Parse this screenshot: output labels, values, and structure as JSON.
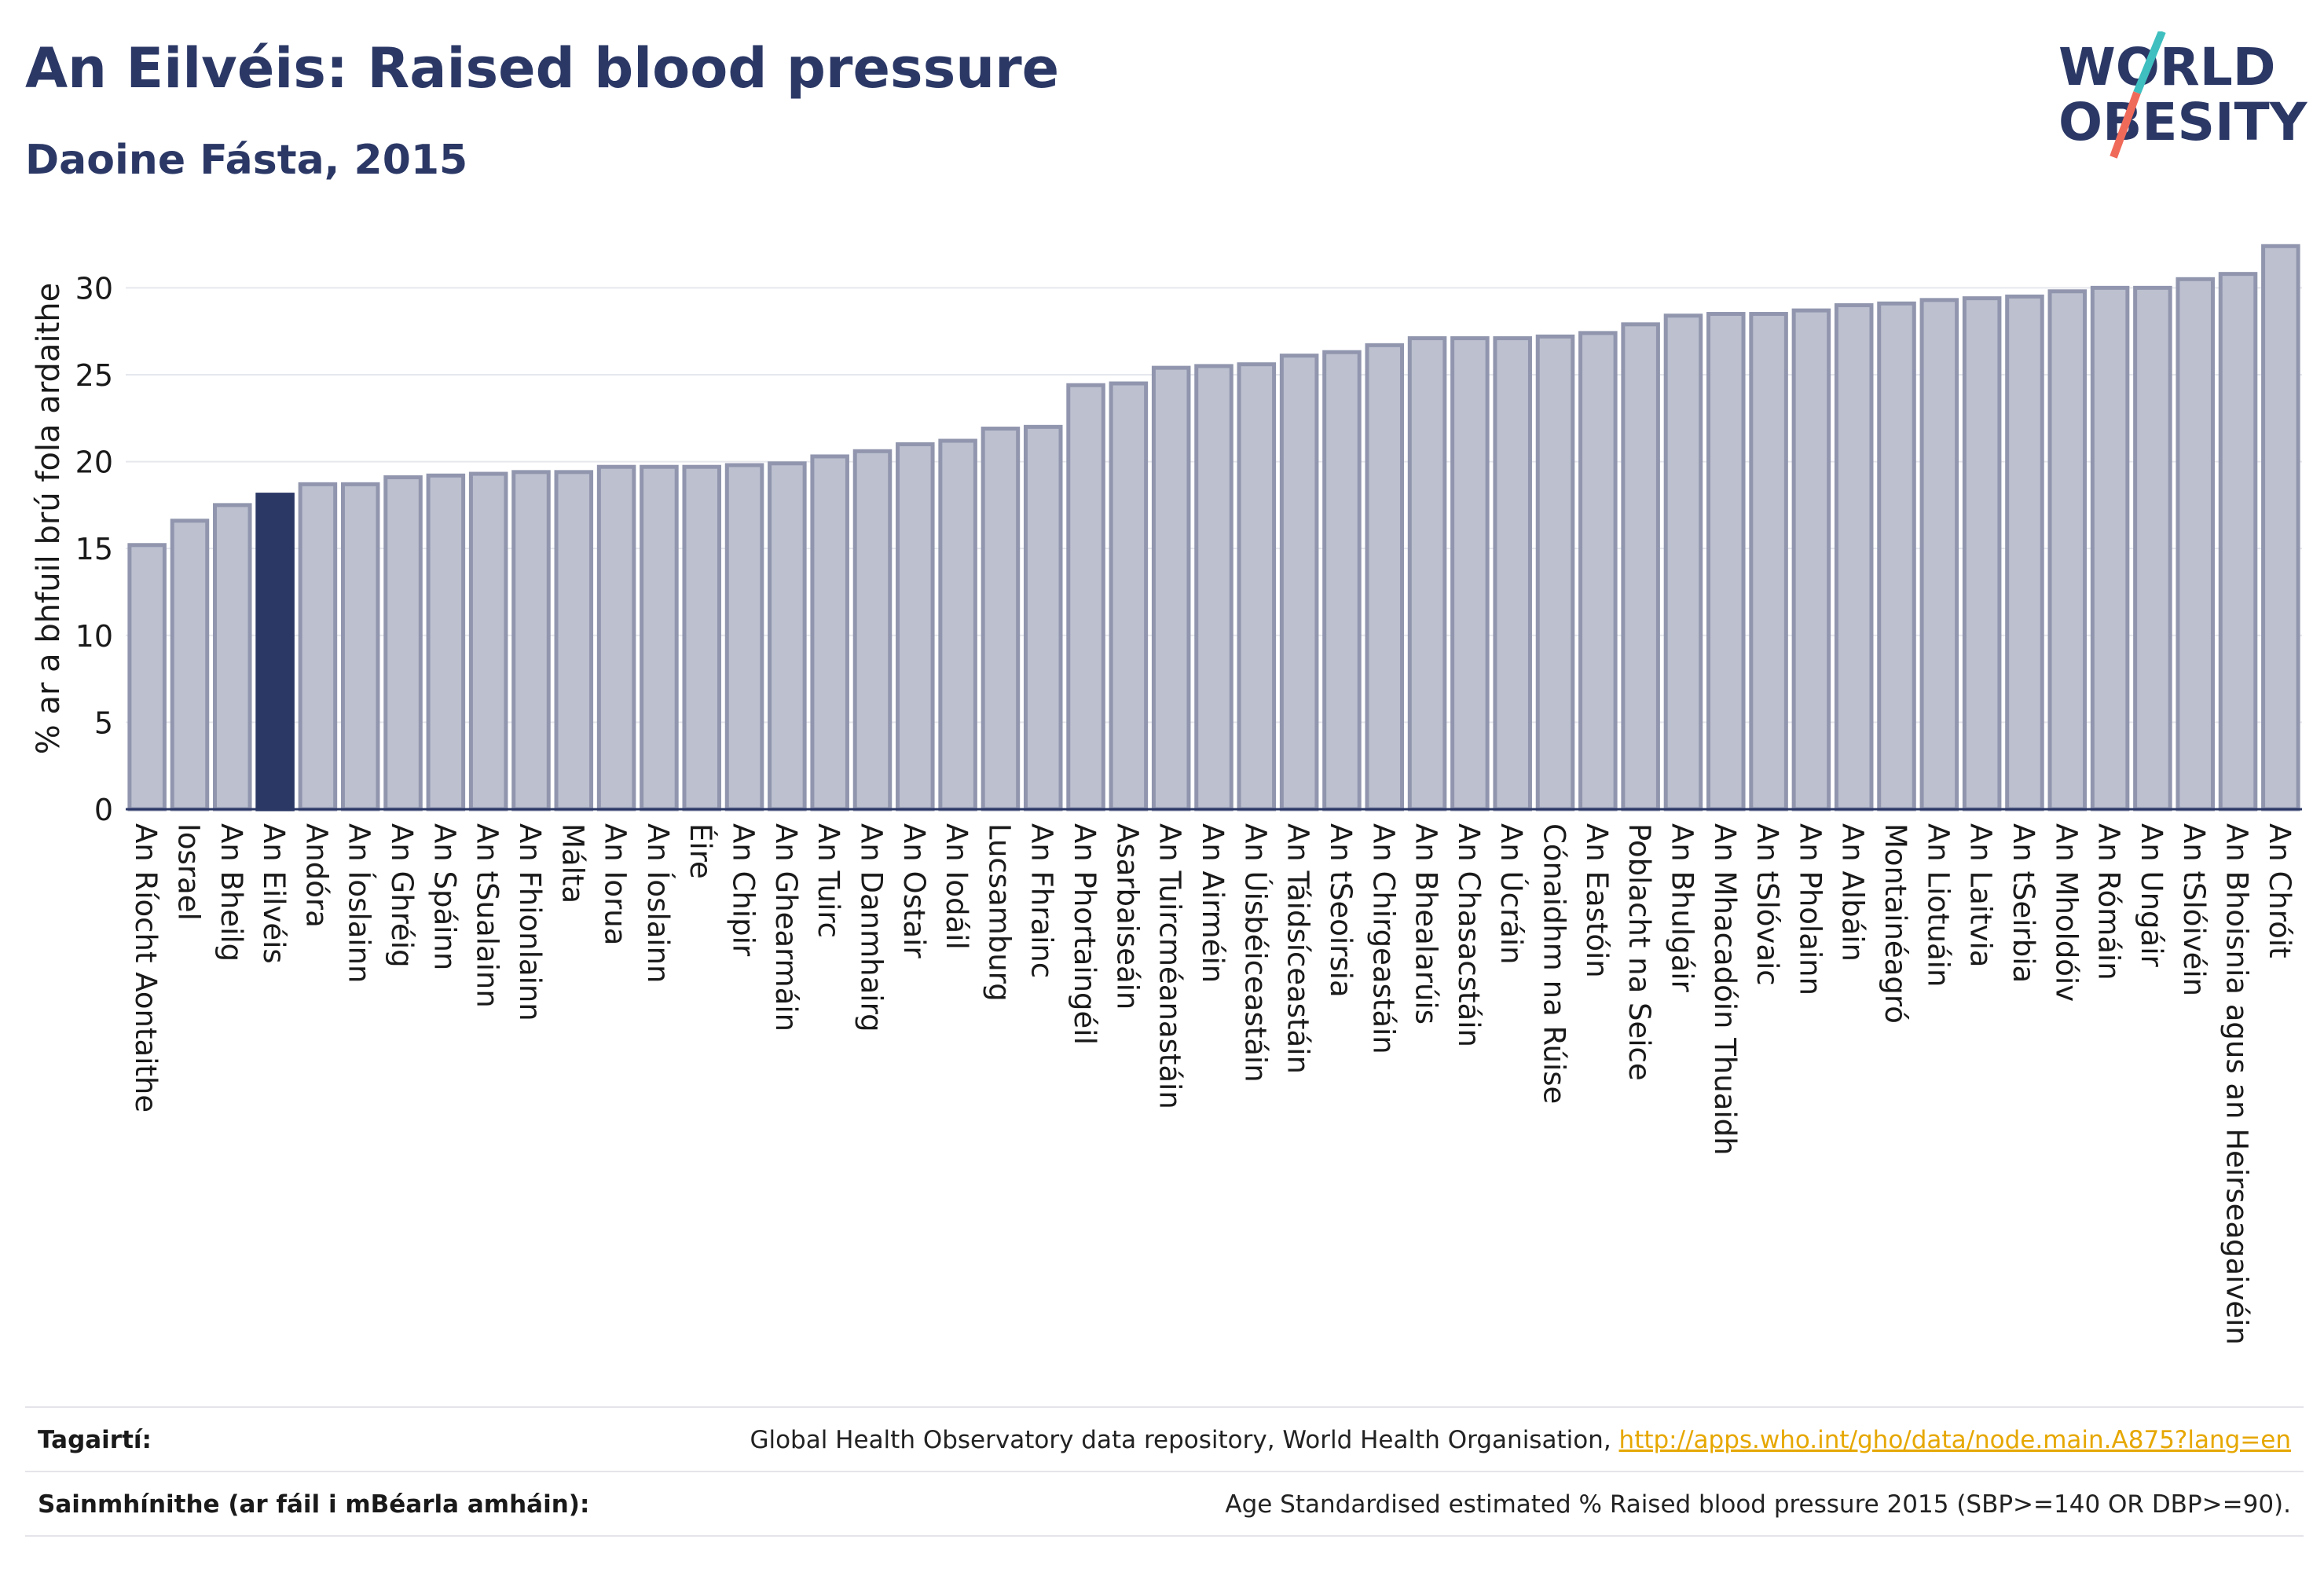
{
  "header": {
    "title": "An Eilvéis: Raised blood pressure",
    "subtitle": "Daoine Fásta, 2015"
  },
  "logo": {
    "line1": "WORLD",
    "line2": "OBESITY",
    "colors": {
      "text": "#2b3866",
      "slash_top": "#3fbfbf",
      "slash_bottom": "#f06a5a"
    }
  },
  "colors": {
    "bar": "#bcc0cf",
    "bar_stroke": "#9196ae",
    "highlight": "#2b3866",
    "axis": "#2b3866",
    "grid": "#e6e8ee"
  },
  "chart_data": {
    "type": "bar",
    "title": "An Eilvéis: Raised blood pressure",
    "subtitle": "Daoine Fásta, 2015",
    "xlabel": "",
    "ylabel": "% ar a bhfuil brú fola ardaithe",
    "ylim": [
      0,
      33
    ],
    "yticks": [
      0,
      5,
      10,
      15,
      20,
      25,
      30
    ],
    "grid": true,
    "highlight": "An Eilvéis",
    "categories": [
      "An Ríocht Aontaithe",
      "Iosrael",
      "An Bheilg",
      "An Eilvéis",
      "Andóra",
      "An Íoslainn",
      "An Ghréig",
      "An Spáinn",
      "An tSualainn",
      "An Fhionlainn",
      "Málta",
      "An Iorua",
      "An Íoslainn",
      "Éire",
      "An Chipir",
      "An Ghearmáin",
      "An Tuirc",
      "An Danmhairg",
      "An Ostair",
      "An Iodáil",
      "Lucsamburg",
      "An Fhrainc",
      "An Phortaingéil",
      "Asarbaiseáin",
      "An Tuircméanastáin",
      "An Airméin",
      "An Úisbéiceastáin",
      "An Táidsíceastáin",
      "An tSeoirsia",
      "An Chirgeastáin",
      "An Bhealarúis",
      "An Chasacstáin",
      "An Úcráin",
      "Cónaidhm na Rúise",
      "An Eastóin",
      "Poblacht na Seice",
      "An Bhulgáir",
      "An Mhacadóin Thuaidh",
      "An tSlóvaic",
      "An Pholainn",
      "An Albáin",
      "Montainéagró",
      "An Liotuáin",
      "An Laitvia",
      "An tSeirbia",
      "An Mholdóiv",
      "An Rómáin",
      "An Ungáir",
      "An tSlóivéin",
      "An Bhoisnia agus an Heirseagaivéin",
      "An Chróit"
    ],
    "values": [
      15.2,
      16.6,
      17.5,
      18.1,
      18.7,
      18.7,
      19.1,
      19.2,
      19.3,
      19.4,
      19.4,
      19.7,
      19.7,
      19.7,
      19.8,
      19.9,
      20.3,
      20.6,
      21.0,
      21.2,
      21.9,
      22.0,
      24.4,
      24.5,
      25.4,
      25.5,
      25.6,
      26.1,
      26.3,
      26.7,
      27.1,
      27.1,
      27.1,
      27.2,
      27.4,
      27.9,
      28.4,
      28.5,
      28.5,
      28.7,
      29.0,
      29.1,
      29.3,
      29.4,
      29.5,
      29.8,
      30.0,
      30.0,
      30.5,
      30.8,
      32.4
    ]
  },
  "footer": {
    "references_label": "Tagairtí:",
    "references_text": "Global Health Observatory data repository, World Health Organisation, ",
    "references_link": "http://apps.who.int/gho/data/node.main.A875?lang=en",
    "definitions_label": "Sainmhínithe (ar fáil i mBéarla amháin):",
    "definitions_text": "Age Standardised estimated % Raised blood pressure 2015 (SBP>=140 OR DBP>=90)."
  }
}
